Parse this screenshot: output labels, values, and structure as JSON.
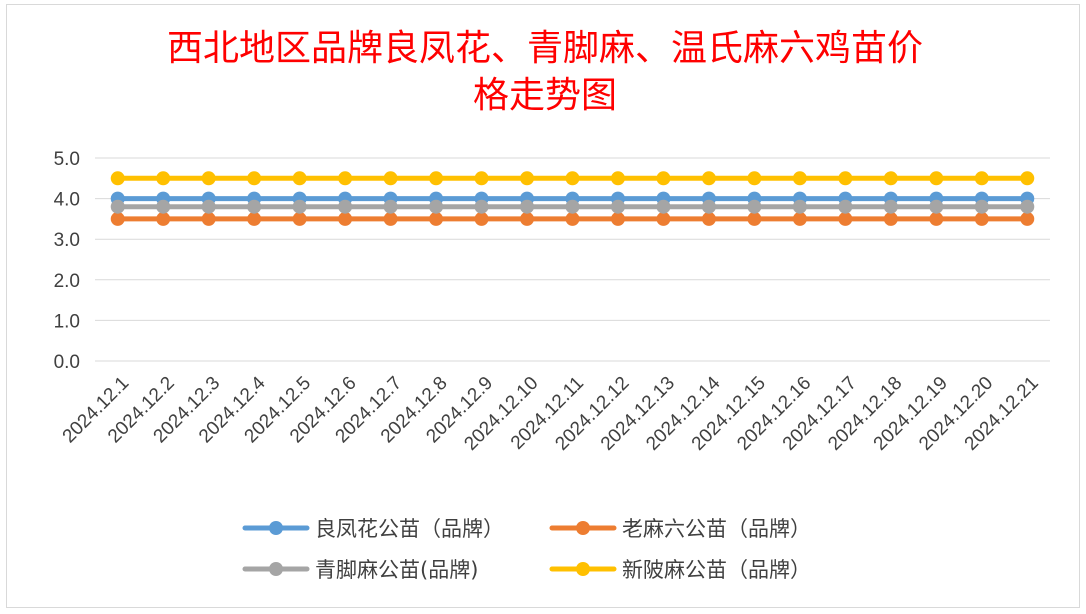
{
  "chart_data": {
    "type": "line",
    "title_lines": [
      "西北地区品牌良凤花、青脚麻、温氏麻六鸡苗价",
      "格走势图"
    ],
    "xlabel": "",
    "ylabel": "",
    "ylim": [
      0,
      5
    ],
    "yticks": [
      "0.0",
      "1.0",
      "2.0",
      "3.0",
      "4.0",
      "5.0"
    ],
    "grid": true,
    "legend_position": "bottom",
    "x": [
      "2024.12.1",
      "2024.12.2",
      "2024.12.3",
      "2024.12.4",
      "2024.12.5",
      "2024.12.6",
      "2024.12.7",
      "2024.12.8",
      "2024.12.9",
      "2024.12.10",
      "2024.12.11",
      "2024.12.12",
      "2024.12.13",
      "2024.12.14",
      "2024.12.15",
      "2024.12.16",
      "2024.12.17",
      "2024.12.18",
      "2024.12.19",
      "2024.12.20",
      "2024.12.21"
    ],
    "series": [
      {
        "name": "良凤花公苗（品牌）",
        "color": "#5b9bd5",
        "values": [
          4,
          4,
          4,
          4,
          4,
          4,
          4,
          4,
          4,
          4,
          4,
          4,
          4,
          4,
          4,
          4,
          4,
          4,
          4,
          4,
          4
        ]
      },
      {
        "name": "老麻六公苗（品牌）",
        "color": "#ed7d31",
        "values": [
          3.5,
          3.5,
          3.5,
          3.5,
          3.5,
          3.5,
          3.5,
          3.5,
          3.5,
          3.5,
          3.5,
          3.5,
          3.5,
          3.5,
          3.5,
          3.5,
          3.5,
          3.5,
          3.5,
          3.5,
          3.5
        ]
      },
      {
        "name": "青脚麻公苗(品牌)",
        "color": "#a5a5a5",
        "values": [
          3.8,
          3.8,
          3.8,
          3.8,
          3.8,
          3.8,
          3.8,
          3.8,
          3.8,
          3.8,
          3.8,
          3.8,
          3.8,
          3.8,
          3.8,
          3.8,
          3.8,
          3.8,
          3.8,
          3.8,
          3.8
        ]
      },
      {
        "name": "新陂麻公苗（品牌）",
        "color": "#ffc000",
        "values": [
          4.5,
          4.5,
          4.5,
          4.5,
          4.5,
          4.5,
          4.5,
          4.5,
          4.5,
          4.5,
          4.5,
          4.5,
          4.5,
          4.5,
          4.5,
          4.5,
          4.5,
          4.5,
          4.5,
          4.5,
          4.5
        ]
      }
    ]
  }
}
